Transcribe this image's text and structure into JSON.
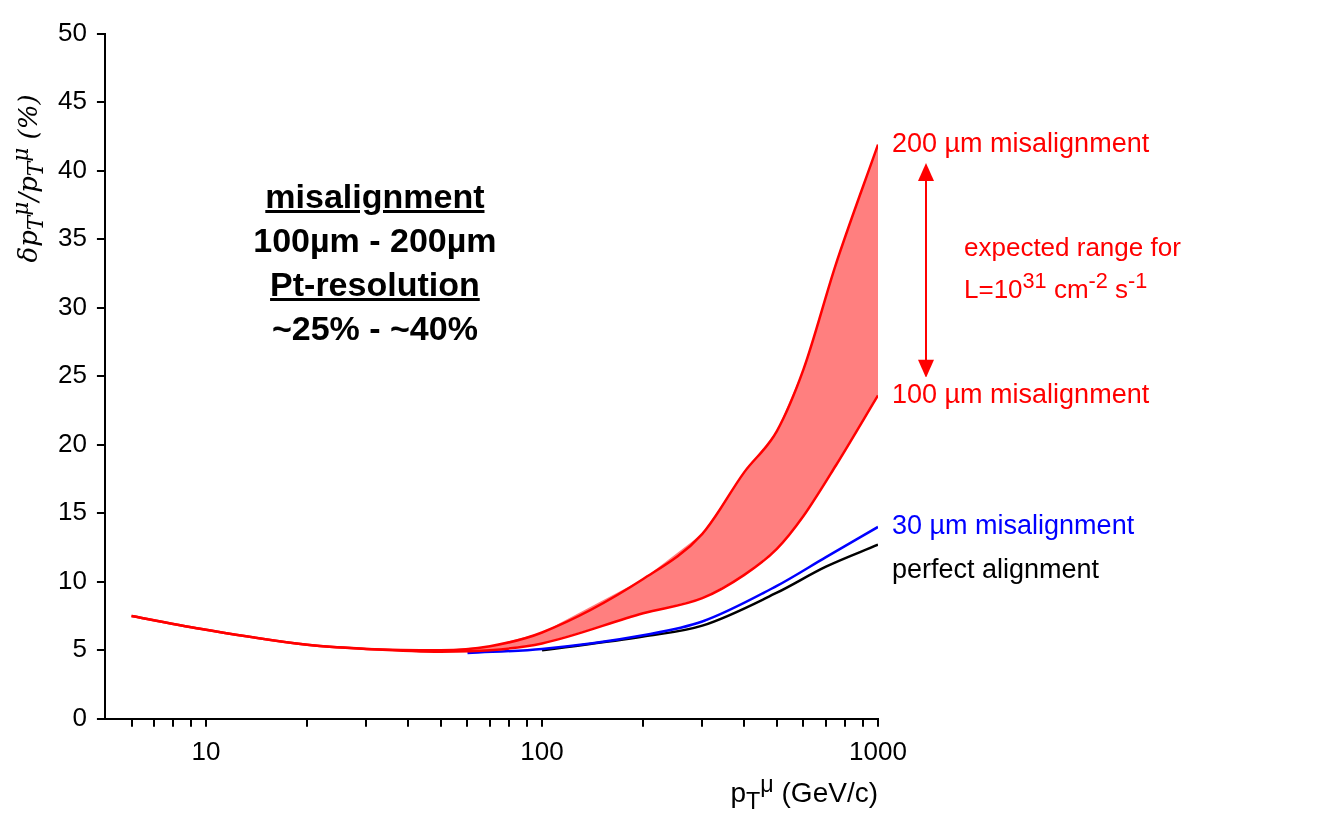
{
  "chart_data": {
    "type": "line",
    "xlabel": "p$_{T}$$^{μ}$ (GeV/c)",
    "ylabel": "δp$_{T}$$^{μ}$/p$_{T}$$^{μ}$ (%)",
    "log": "x",
    "marker": "none",
    "line_style": "solid",
    "xlim": [
      5,
      1000
    ],
    "xticks": [
      {
        "value": 6,
        "label": null
      },
      {
        "value": 7,
        "label": null
      },
      {
        "value": 8,
        "label": null
      },
      {
        "value": 9,
        "label": null
      },
      10,
      {
        "value": 20,
        "label": null
      },
      {
        "value": 30,
        "label": null
      },
      {
        "value": 40,
        "label": null
      },
      {
        "value": 50,
        "label": null
      },
      {
        "value": 60,
        "label": null
      },
      {
        "value": 70,
        "label": null
      },
      {
        "value": 80,
        "label": null
      },
      {
        "value": 90,
        "label": null
      },
      100,
      {
        "value": 200,
        "label": null
      },
      {
        "value": 300,
        "label": null
      },
      {
        "value": 400,
        "label": null
      },
      {
        "value": 500,
        "label": null
      },
      {
        "value": 600,
        "label": null
      },
      {
        "value": 700,
        "label": null
      },
      {
        "value": 800,
        "label": null
      },
      {
        "value": 900,
        "label": null
      },
      1000
    ],
    "ylim": [
      0,
      50
    ],
    "yticks": [
      0,
      5,
      10,
      15,
      20,
      25,
      30,
      35,
      40,
      45,
      50
    ],
    "series": [
      {
        "name": "200 µm misalignment",
        "color": "#ff0000",
        "x": [
          6,
          10,
          20,
          30,
          50,
          70,
          100,
          200,
          300,
          400,
          500,
          600,
          750,
          1000
        ],
        "values": [
          7.5,
          6.5,
          5.4,
          5.1,
          5.0,
          5.3,
          6.3,
          10.2,
          13.5,
          18.0,
          21.0,
          25.5,
          33.2,
          41.9
        ],
        "lower": [
          7.5,
          6.5,
          5.4,
          5.1,
          4.9,
          5.0,
          5.5,
          7.7,
          8.8,
          10.5,
          12.4,
          14.8,
          18.5,
          23.6
        ],
        "upper": [
          7.5,
          6.5,
          5.4,
          5.1,
          5.0,
          5.3,
          6.3,
          10.2,
          13.5,
          18.0,
          21.0,
          25.5,
          33.2,
          41.9
        ]
      },
      {
        "name": "100 µm misalignment",
        "color": "#ff0000",
        "x": [
          6,
          10,
          20,
          30,
          50,
          70,
          100,
          200,
          300,
          400,
          500,
          600,
          750,
          1000
        ],
        "values": [
          7.5,
          6.5,
          5.4,
          5.1,
          4.9,
          5.0,
          5.5,
          7.7,
          8.8,
          10.5,
          12.4,
          14.8,
          18.5,
          23.6
        ]
      },
      {
        "name": "30 µm misalignment",
        "color": "#0000ff",
        "x": [
          60,
          100,
          200,
          300,
          500,
          700,
          1000
        ],
        "values": [
          4.8,
          5.1,
          6.1,
          7.1,
          9.7,
          11.8,
          14.0
        ]
      },
      {
        "name": "perfect alignment",
        "color": "#000000",
        "x": [
          100,
          200,
          300,
          500,
          700,
          1000
        ],
        "values": [
          5.0,
          6.0,
          6.8,
          9.2,
          11.1,
          12.7
        ]
      }
    ],
    "annotations": [
      "misalignment",
      "100µm  - 200µm",
      "Pt-resolution",
      "~25% - ~40%",
      "expected range for L=10$^{31}$ cm$^{-2}$ s$^{-1}$"
    ]
  }
}
